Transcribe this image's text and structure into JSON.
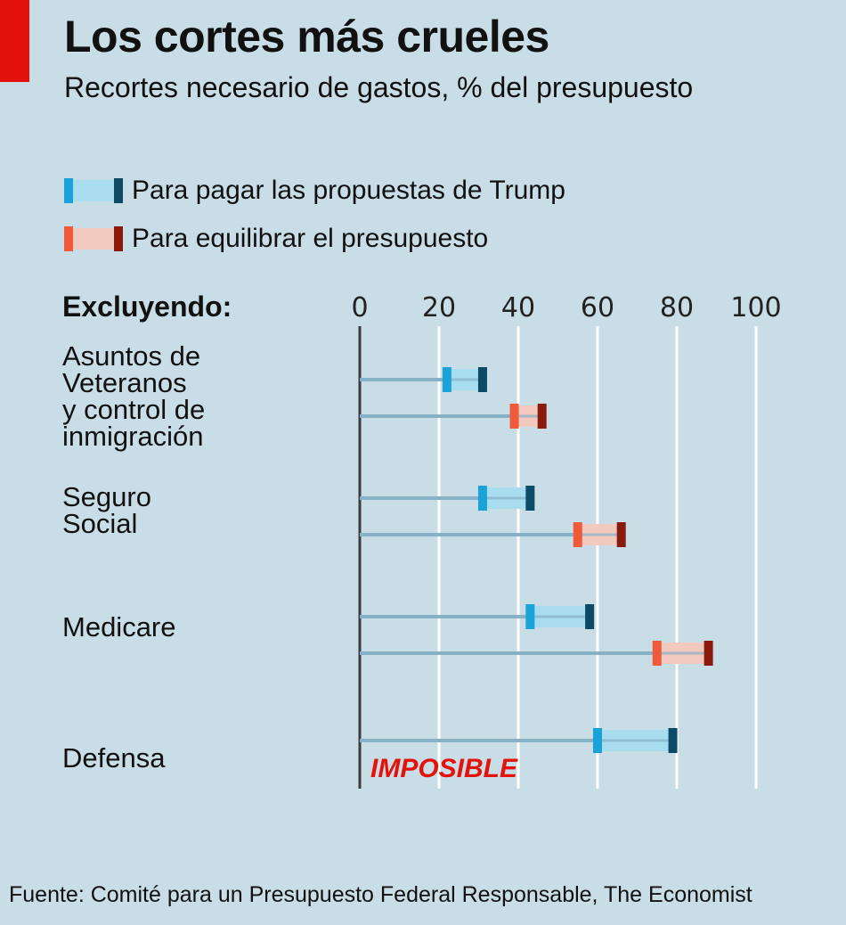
{
  "header": {
    "title": "Los cortes más crueles",
    "subtitle": "Recortes necesario de gastos, % del presupuesto"
  },
  "colors": {
    "accent": "#e3120b",
    "background": "#c9dde6",
    "trump_light": "#a8dcef",
    "trump_left_cap": "#1aa3d9",
    "trump_right_cap": "#0d4a66",
    "balance_light": "#f2c9be",
    "balance_left_cap": "#ef5a3b",
    "balance_right_cap": "#8a1a0c",
    "stem": "#86b1c6",
    "gridline": "#ffffff",
    "axis": "#3c3c3c"
  },
  "legend": [
    {
      "id": "trump",
      "label": "Para pagar las propuestas de Trump"
    },
    {
      "id": "balance",
      "label": "Para equilibrar el presupuesto"
    }
  ],
  "row_header": "Excluyendo:",
  "note": "IMPOSIBLE",
  "source": "Fuente: Comité para un Presupuesto Federal Responsable, The Economist",
  "chart_data": {
    "type": "range-bar",
    "title": "Los cortes más crueles",
    "subtitle": "Recortes necesario de gastos, % del presupuesto",
    "xlim": [
      0,
      100
    ],
    "xticks": [
      0,
      20,
      40,
      60,
      80,
      100
    ],
    "grid": true,
    "legend_placement": "top-left",
    "series": [
      {
        "name": "Para pagar las propuestas de Trump",
        "id": "trump"
      },
      {
        "name": "Para equilibrar el presupuesto",
        "id": "balance"
      }
    ],
    "categories": [
      {
        "label": "Asuntos de\nVeteranos\ny control de\ninmigración",
        "trump": [
          22,
          31
        ],
        "balance": [
          39,
          46
        ]
      },
      {
        "label": "Seguro\nSocial",
        "trump": [
          31,
          43
        ],
        "balance": [
          55,
          66
        ]
      },
      {
        "label": "Medicare",
        "trump": [
          43,
          58
        ],
        "balance": [
          75,
          88
        ]
      },
      {
        "label": "Defensa",
        "trump": [
          60,
          79
        ],
        "balance": null,
        "balance_note": "IMPOSIBLE"
      }
    ]
  }
}
